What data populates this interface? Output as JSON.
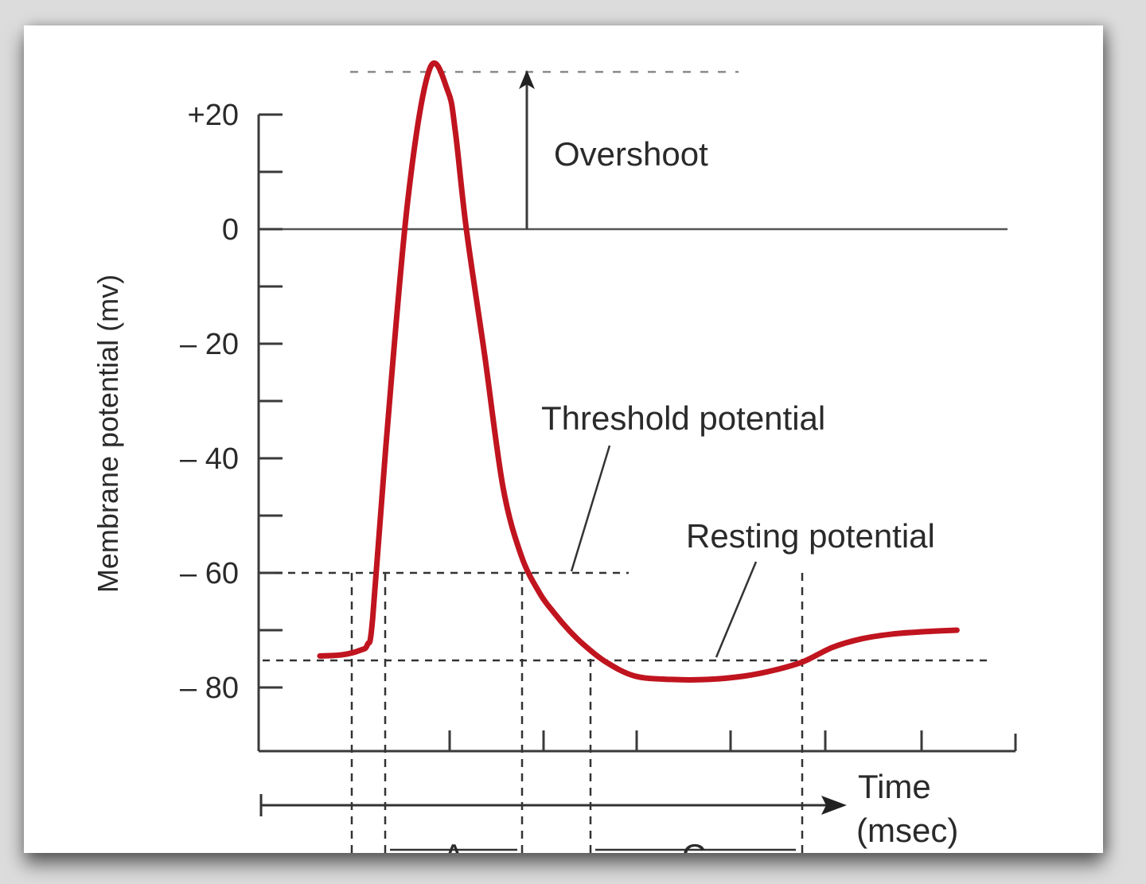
{
  "chart_data": {
    "type": "line",
    "xlabel": "Time\n(msec)",
    "ylabel": "Membrane potential (mv)",
    "ylim": [
      -90,
      30
    ],
    "yticks_labeled": [
      "+20",
      "0",
      "– 20",
      "– 40",
      "– 60",
      "– 80"
    ],
    "ytick_values": [
      20,
      0,
      -20,
      -40,
      -60,
      -80
    ],
    "series": [
      {
        "color": "#c0141f",
        "x": [
          0,
          0.3,
          0.55,
          0.65,
          0.72,
          0.9,
          1.2,
          1.5,
          1.75,
          1.85,
          2.0,
          2.25,
          2.5,
          2.75,
          3.0,
          3.2,
          3.4,
          3.6,
          3.9,
          4.3,
          4.8,
          5.3,
          5.8,
          6.2,
          6.6,
          7.0,
          7.4,
          7.8,
          8.2,
          8.7
        ],
        "y": [
          -74.5,
          -74.3,
          -73.5,
          -72.5,
          -68,
          -38,
          5,
          28,
          24,
          17,
          0,
          -22,
          -45,
          -57,
          -63.5,
          -67,
          -70,
          -72.5,
          -75.5,
          -78,
          -78.6,
          -78.6,
          -78,
          -77,
          -75.5,
          -73,
          -71.5,
          -70.7,
          -70.3,
          -70
        ]
      }
    ],
    "annotations": {
      "overshoot": "Overshoot",
      "threshold": "Threshold potential",
      "resting": "Resting potential",
      "segment_a": "A",
      "segment_c": "C"
    },
    "reference_lines": {
      "peak_mv": 28,
      "zero_mv": 0,
      "threshold_mv": -60,
      "resting_mv": -75
    },
    "grid": false
  }
}
